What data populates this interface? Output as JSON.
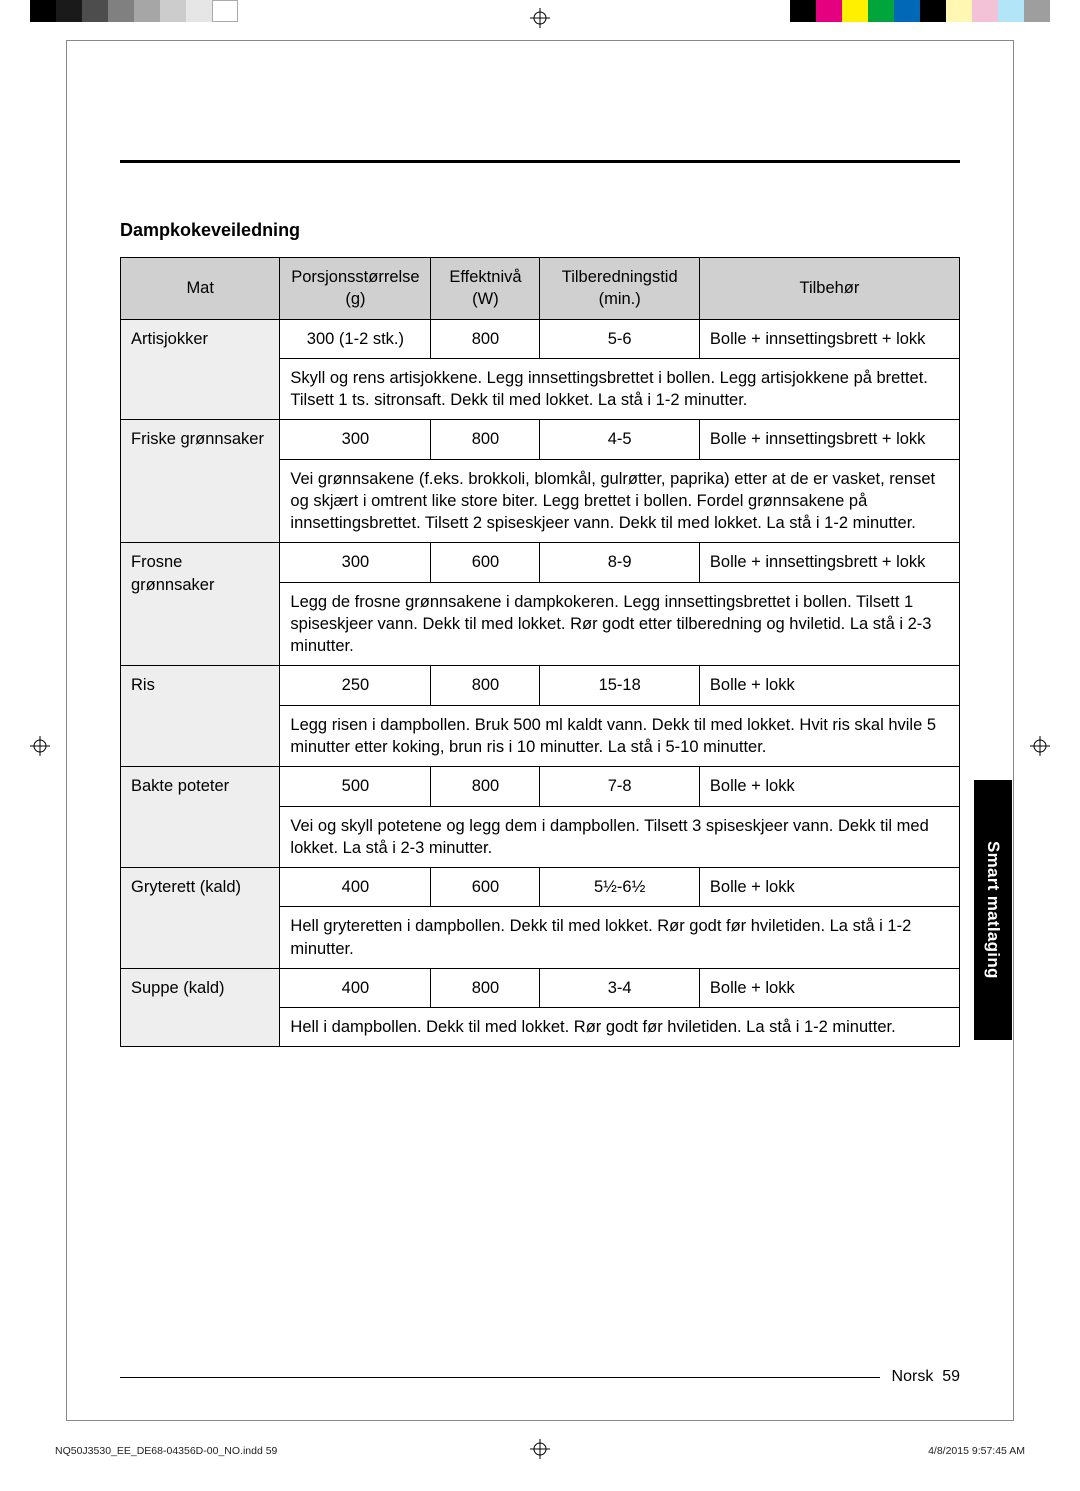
{
  "registration": {
    "top_left_colors": [
      "#000000",
      "#1a1a1a",
      "#4d4d4d",
      "#808080",
      "#a6a6a6",
      "#cccccc",
      "#e6e6e6",
      "#ffffff"
    ],
    "top_right_colors": [
      "#000000",
      "#e4007f",
      "#fff000",
      "#00a63c",
      "#0068b7",
      "#000000",
      "#fff7b2",
      "#f4c2d7",
      "#b2e5f8",
      "#9e9e9e"
    ]
  },
  "section_title": "Dampkokeveiledning",
  "headers": {
    "food": "Mat",
    "portion": "Porsjonsstørrelse (g)",
    "power": "Effektnivå (W)",
    "time": "Tilberedningstid (min.)",
    "accessory": "Tilbehør"
  },
  "accessory_labels": {
    "bowl_tray_lid": "Bolle + innsettingsbrett + lokk",
    "bowl_lid": "Bolle + lokk"
  },
  "rows": [
    {
      "food": "Artisjokker",
      "portion": "300 (1-2 stk.)",
      "power": "800",
      "time": "5-6",
      "accessory": "bowl_tray_lid",
      "instructions": "Skyll og rens artisjokkene. Legg innsettingsbrettet i bollen. Legg artisjokkene på brettet. Tilsett 1 ts. sitronsaft. Dekk til med lokket. La stå i 1-2 minutter."
    },
    {
      "food": "Friske grønnsaker",
      "portion": "300",
      "power": "800",
      "time": "4-5",
      "accessory": "bowl_tray_lid",
      "instructions": "Vei grønnsakene (f.eks. brokkoli, blomkål, gulrøtter, paprika) etter at de er vasket, renset og skjært i omtrent like store biter. Legg brettet i bollen. Fordel grønnsakene på innsettingsbrettet. Tilsett 2 spiseskjeer vann. Dekk til med lokket. La stå i 1-2 minutter."
    },
    {
      "food": "Frosne grønnsaker",
      "portion": "300",
      "power": "600",
      "time": "8-9",
      "accessory": "bowl_tray_lid",
      "instructions": "Legg de frosne grønnsakene i dampkokeren. Legg innsettingsbrettet i bollen. Tilsett 1 spiseskjeer vann. Dekk til med lokket. Rør godt etter tilberedning og hviletid. La stå i 2-3 minutter."
    },
    {
      "food": "Ris",
      "portion": "250",
      "power": "800",
      "time": "15-18",
      "accessory": "bowl_lid",
      "instructions": "Legg risen i dampbollen. Bruk 500 ml kaldt vann. Dekk til med lokket. Hvit ris skal hvile 5 minutter etter koking, brun ris i 10 minutter. La stå i 5-10 minutter."
    },
    {
      "food": "Bakte poteter",
      "portion": "500",
      "power": "800",
      "time": "7-8",
      "accessory": "bowl_lid",
      "instructions": "Vei og skyll potetene og legg dem i dampbollen. Tilsett 3 spiseskjeer vann. Dekk til med lokket. La stå i 2-3 minutter."
    },
    {
      "food": "Gryterett (kald)",
      "portion": "400",
      "power": "600",
      "time": "5½-6½",
      "accessory": "bowl_lid",
      "instructions": "Hell gryteretten i dampbollen. Dekk til med lokket. Rør godt før hviletiden. La stå i 1-2 minutter."
    },
    {
      "food": "Suppe (kald)",
      "portion": "400",
      "power": "800",
      "time": "3-4",
      "accessory": "bowl_lid",
      "instructions": "Hell i dampbollen. Dekk til med lokket. Rør godt før hviletiden. La stå i 1-2 minutter."
    }
  ],
  "side_tab": "Smart matlaging",
  "footer": {
    "language": "Norsk",
    "page_number": "59"
  },
  "printer": {
    "filename": "NQ50J3530_EE_DE68-04356D-00_NO.indd   59",
    "timestamp": "4/8/2015   9:57:45 AM"
  }
}
